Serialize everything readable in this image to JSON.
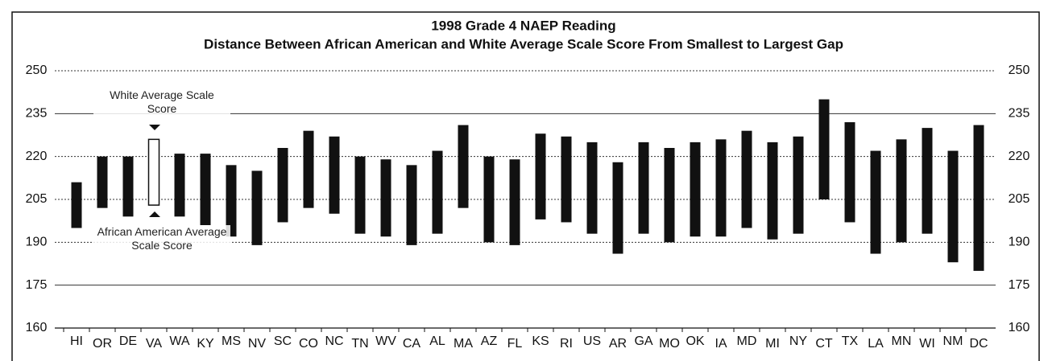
{
  "chart_data": {
    "type": "floating_bar",
    "title": "1998 Grade 4 NAEP Reading",
    "subtitle": "Distance Between African American and White Average Scale Score From Smallest to Largest Gap",
    "categories": [
      "HI",
      "OR",
      "DE",
      "VA",
      "WA",
      "KY",
      "MS",
      "NV",
      "SC",
      "CO",
      "NC",
      "TN",
      "WV",
      "CA",
      "AL",
      "MA",
      "AZ",
      "FL",
      "KS",
      "RI",
      "US",
      "AR",
      "GA",
      "MO",
      "OK",
      "IA",
      "MD",
      "MI",
      "NY",
      "CT",
      "TX",
      "LA",
      "MN",
      "WI",
      "NM",
      "DC"
    ],
    "series": [
      {
        "name": "African American Average Scale Score",
        "values": [
          195,
          202,
          199,
          203,
          199,
          196,
          192,
          189,
          197,
          202,
          200,
          193,
          192,
          189,
          193,
          202,
          190,
          189,
          198,
          197,
          193,
          186,
          193,
          190,
          192,
          192,
          195,
          191,
          193,
          205,
          197,
          186,
          190,
          193,
          183,
          180
        ]
      },
      {
        "name": "White Average Scale Score",
        "values": [
          211,
          220,
          220,
          226,
          221,
          221,
          217,
          215,
          223,
          229,
          227,
          220,
          219,
          217,
          222,
          231,
          220,
          219,
          228,
          227,
          225,
          218,
          225,
          223,
          225,
          226,
          229,
          225,
          227,
          240,
          232,
          222,
          226,
          230,
          222,
          231
        ]
      }
    ],
    "color": "#111111",
    "ylim": [
      160,
      250
    ],
    "yticks": [
      160,
      175,
      190,
      205,
      220,
      235,
      250
    ],
    "grid": true
  }
}
